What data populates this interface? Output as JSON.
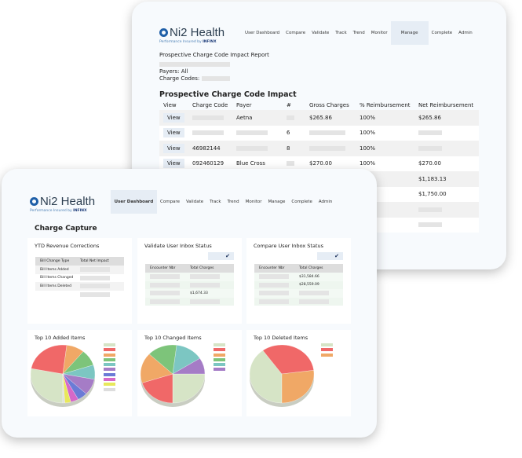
{
  "brand": {
    "name": "Ni2 Health",
    "tagline": "Performance Insured",
    "by": "by",
    "company": "INFINX",
    "accent": "#1f5fa8"
  },
  "back": {
    "nav": [
      "User Dashboard",
      "Compare",
      "Validate",
      "Track",
      "Trend",
      "Monitor",
      "Manage",
      "Complete",
      "Admin"
    ],
    "active_nav": "Manage",
    "report_title": "Prospective Charge Code Impact Report",
    "payers": "Payers: All",
    "charge_codes": "Charge Codes:",
    "table_title": "Prospective Charge Code Impact",
    "columns": [
      "View",
      "Charge Code",
      "Payer",
      "#",
      "Gross Charges",
      "% Reimbursement",
      "Net Reimbursement"
    ],
    "rows": [
      {
        "view": "View",
        "code": null,
        "payer": "Aetna",
        "count": null,
        "gross": "$265.86",
        "pct": "100%",
        "net": "$265.86"
      },
      {
        "view": "View",
        "code": null,
        "payer": null,
        "count": "6",
        "gross": null,
        "pct": "100%",
        "net": null
      },
      {
        "view": "View",
        "code": "46982144",
        "payer": null,
        "count": "8",
        "gross": null,
        "pct": "100%",
        "net": null
      },
      {
        "view": "View",
        "code": "092460129",
        "payer": "Blue Cross",
        "count": null,
        "gross": "$270.00",
        "pct": "100%",
        "net": "$270.00"
      },
      {
        "view": "",
        "code": "",
        "payer": "",
        "count": "",
        "gross": "",
        "pct": "",
        "net": "$1,183.13"
      },
      {
        "view": "",
        "code": "",
        "payer": "",
        "count": "",
        "gross": "",
        "pct": "",
        "net": "$1,750.00"
      },
      {
        "view": "",
        "code": "",
        "payer": "",
        "count": "",
        "gross": "",
        "pct": "",
        "net": null
      },
      {
        "view": "",
        "code": "",
        "payer": "",
        "count": "",
        "gross": "",
        "pct": "",
        "net": null
      }
    ]
  },
  "front": {
    "nav": [
      "User Dashboard",
      "Compare",
      "Validate",
      "Track",
      "Trend",
      "Monitor",
      "Manage",
      "Complete",
      "Admin"
    ],
    "active_nav": "User Dashboard",
    "title": "Charge Capture",
    "ytd": {
      "title": "YTD Revenue Corrections",
      "columns": [
        "Bill Change Type",
        "Total Net Impact"
      ],
      "rows": [
        "Bill Items Added",
        "Bill Items Changed",
        "Bill Items Deleted",
        ""
      ]
    },
    "validate": {
      "title": "Validate User Inbox Status",
      "check": "✔",
      "columns": [
        "Encounter Nbr",
        "Total Charges"
      ],
      "rows": [
        null,
        null,
        "$1,674.33",
        null
      ]
    },
    "compare": {
      "title": "Compare User Inbox Status",
      "check": "✔",
      "columns": [
        "Encounter Nbr",
        "Total Charges"
      ],
      "rows": [
        "$31,584.66",
        "$28,559.09",
        null,
        null
      ]
    }
  },
  "chart_data": [
    {
      "type": "pie",
      "title": "Top 10 Added Items",
      "values": [
        28,
        24,
        9,
        9,
        8,
        9,
        5,
        4,
        3,
        1
      ],
      "colors": [
        "#d6e4c6",
        "#f06868",
        "#f0a866",
        "#7dc47a",
        "#7cc6c2",
        "#a57cc6",
        "#6b7bd6",
        "#d668c8",
        "#e8e85a",
        "#dddddd"
      ]
    },
    {
      "type": "pie",
      "title": "Top 10 Changed Items",
      "values": [
        25,
        20,
        17,
        15,
        14,
        9
      ],
      "colors": [
        "#d6e4c6",
        "#f06868",
        "#f0a866",
        "#7dc47a",
        "#7cc6c2",
        "#a57cc6"
      ]
    },
    {
      "type": "pie",
      "title": "Top 10 Deleted Items",
      "values": [
        40,
        33,
        27
      ],
      "colors": [
        "#d6e4c6",
        "#f06868",
        "#f0a866"
      ]
    }
  ]
}
